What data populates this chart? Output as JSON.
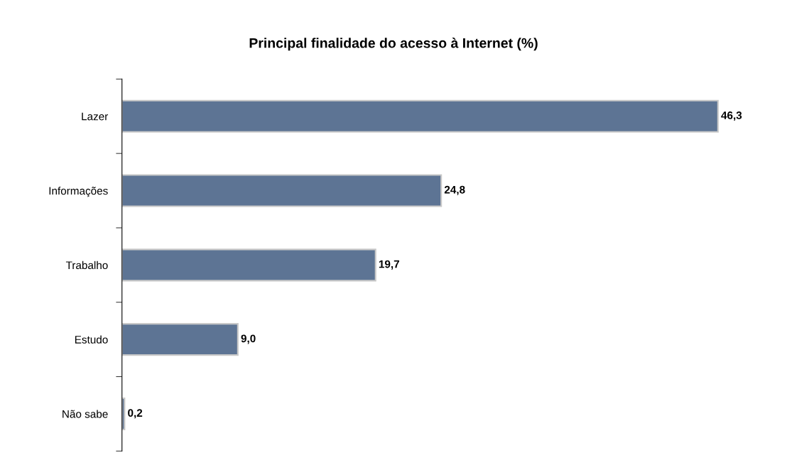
{
  "chart_data": {
    "type": "bar",
    "orientation": "horizontal",
    "title": "Principal finalidade do acesso à Internet (%)",
    "categories": [
      "Lazer",
      "Informações",
      "Trabalho",
      "Estudo",
      "Não sabe"
    ],
    "values": [
      46.3,
      24.8,
      19.7,
      9.0,
      0.2
    ],
    "value_labels": [
      "46,3",
      "24,8",
      "19,7",
      "9,0",
      "0,2"
    ],
    "color": "#5d7494",
    "grid": false,
    "legend": false
  }
}
